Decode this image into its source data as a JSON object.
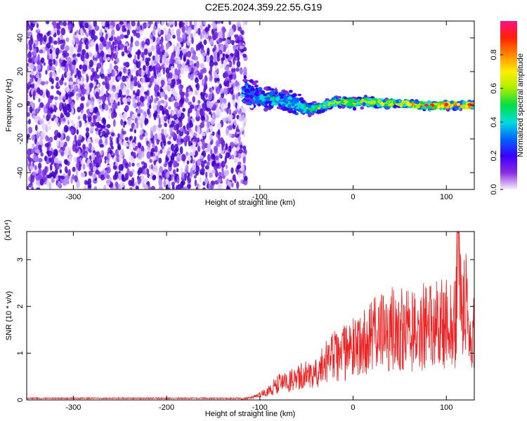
{
  "title": "C2E5.2024.359.22.55.G19",
  "colors": {
    "scatter": "#6a1fd9",
    "snr_line": "#ee2222",
    "frame": "#000000"
  },
  "chart_data": [
    {
      "type": "heatmap",
      "xlabel": "Height of straight line (km)",
      "ylabel": "Frequency (Hz)",
      "xlim": [
        -350,
        130
      ],
      "ylim": [
        -50,
        50
      ],
      "x_ticks": [
        -300,
        -200,
        -100,
        0,
        100
      ],
      "x_tick_labels": [
        "-300",
        "-200",
        "-100",
        "0",
        "100"
      ],
      "y_ticks": [
        -40,
        -20,
        0,
        20,
        40
      ],
      "y_tick_labels": [
        "-40",
        "-20",
        "0",
        "20",
        "40"
      ],
      "noise_region_x": [
        -350,
        -115
      ],
      "signal_track": {
        "x": [
          -118,
          -110,
          -100,
          -90,
          -80,
          -70,
          -60,
          -50,
          -40,
          -30,
          -20,
          -10,
          0,
          10,
          20,
          30,
          40,
          50,
          60,
          70,
          80,
          90,
          100,
          110,
          120,
          130
        ],
        "freq": [
          8,
          6,
          5,
          4,
          3,
          2,
          0,
          -2,
          -2,
          0,
          2,
          2,
          1,
          2,
          2,
          1,
          1,
          1,
          1,
          0,
          0,
          0,
          0,
          0,
          0,
          0
        ],
        "spread": [
          8,
          6,
          5,
          5,
          4,
          4,
          4,
          3,
          2,
          2,
          2,
          2,
          2,
          2,
          2,
          1.5,
          1.5,
          1.5,
          1.5,
          1.5,
          1.5,
          1.5,
          1.5,
          1.5,
          1.5,
          1.5
        ]
      },
      "colorbar": {
        "label": "Normalized spectral amplitude",
        "range": [
          0,
          1
        ],
        "ticks": [
          0.0,
          0.2,
          0.4,
          0.6,
          0.8
        ],
        "tick_labels": [
          "0.0",
          "0.2",
          "0.4",
          "0.6",
          "0.8"
        ],
        "stops": [
          "#f5f0ff",
          "#8a2be2",
          "#3a00ff",
          "#0066ff",
          "#00dddd",
          "#00dd44",
          "#aaee00",
          "#ffee00",
          "#ff8800",
          "#ff2200",
          "#ff1188"
        ]
      }
    },
    {
      "type": "line",
      "xlabel": "Height of straight line (km)",
      "ylabel": "SNR (10 * v/v)",
      "y_multiplier": "(x10⁴)",
      "xlim": [
        -350,
        130
      ],
      "ylim": [
        0,
        3.6
      ],
      "x_ticks": [
        -300,
        -200,
        -100,
        0,
        100
      ],
      "x_tick_labels": [
        "-300",
        "-200",
        "-100",
        "0",
        "100"
      ],
      "y_ticks": [
        0,
        1,
        2,
        3
      ],
      "y_tick_labels": [
        "0",
        "1",
        "2",
        "3"
      ],
      "x": [
        -350,
        -120,
        -110,
        -100,
        -90,
        -80,
        -70,
        -60,
        -50,
        -40,
        -30,
        -20,
        -10,
        0,
        10,
        20,
        30,
        40,
        50,
        60,
        70,
        80,
        90,
        100,
        105,
        110,
        113,
        116,
        120,
        125,
        130
      ],
      "y": [
        0.02,
        0.02,
        0.05,
        0.1,
        0.2,
        0.35,
        0.4,
        0.45,
        0.55,
        0.65,
        0.8,
        0.95,
        1.0,
        1.1,
        1.2,
        1.35,
        1.45,
        1.5,
        1.55,
        1.5,
        1.55,
        1.6,
        1.6,
        1.65,
        1.6,
        1.7,
        3.6,
        1.6,
        2.4,
        1.0,
        1.5
      ],
      "peak": {
        "x": 113,
        "y": 3.6
      }
    }
  ]
}
